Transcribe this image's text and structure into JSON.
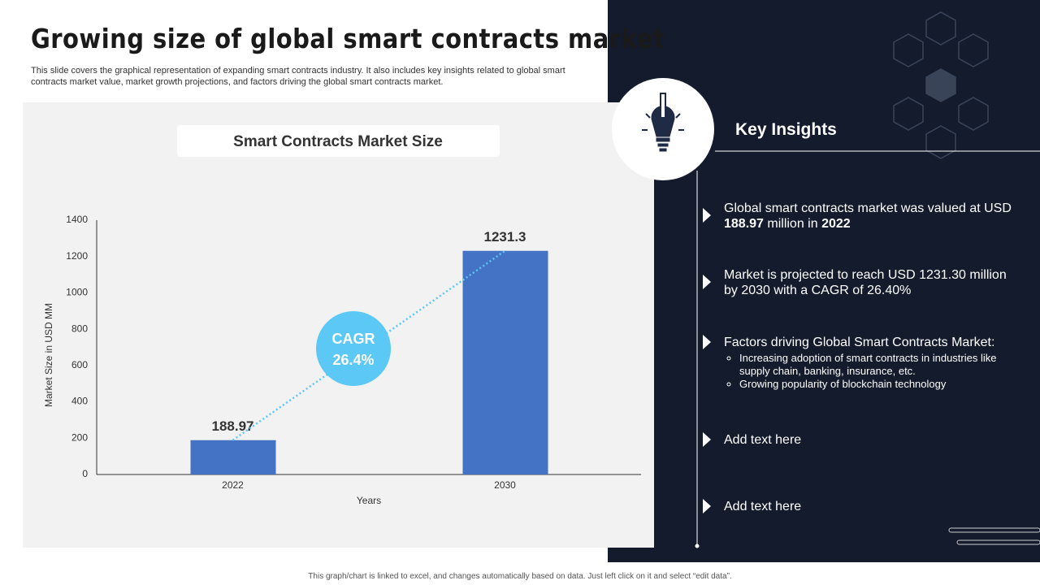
{
  "title": "Growing size of global smart contracts market",
  "description": "This slide covers the graphical representation of expanding smart contracts industry. It also includes key insights related to global smart contracts market value, market growth projections, and factors driving the global smart contracts market.",
  "chart_data": {
    "type": "bar",
    "title": "Smart Contracts Market Size",
    "categories": [
      "2022",
      "2030"
    ],
    "values": [
      188.97,
      1231.3
    ],
    "color": "#4472c4",
    "ylim": [
      0,
      1400
    ],
    "yticks": [
      0,
      200,
      400,
      600,
      800,
      1000,
      1200,
      1400
    ],
    "ylabel": "Market Size in USD MM",
    "xlabel": "Years",
    "annotation": [
      "CAGR",
      "26.4%"
    ]
  },
  "insights": {
    "heading": "Key Insights",
    "items": [
      {
        "parts": [
          "Global smart contracts market was valued at USD ",
          "188.97",
          " million in ",
          "2022"
        ]
      },
      {
        "parts": [
          "Market is projected to reach USD 1231.30 million by 2030 with a CAGR of 26.40%"
        ]
      },
      {
        "parts": [
          "Factors driving Global Smart Contracts Market:"
        ],
        "subitems": [
          "Increasing adoption of smart contracts in industries like supply chain, banking, insurance, etc.",
          "Growing popularity of blockchain technology"
        ]
      },
      {
        "parts": [
          "Add text here"
        ]
      },
      {
        "parts": [
          "Add text here"
        ]
      }
    ]
  },
  "footer": "This graph/chart is linked to excel, and changes automatically based on data. Just left click on it and select “edit data”."
}
